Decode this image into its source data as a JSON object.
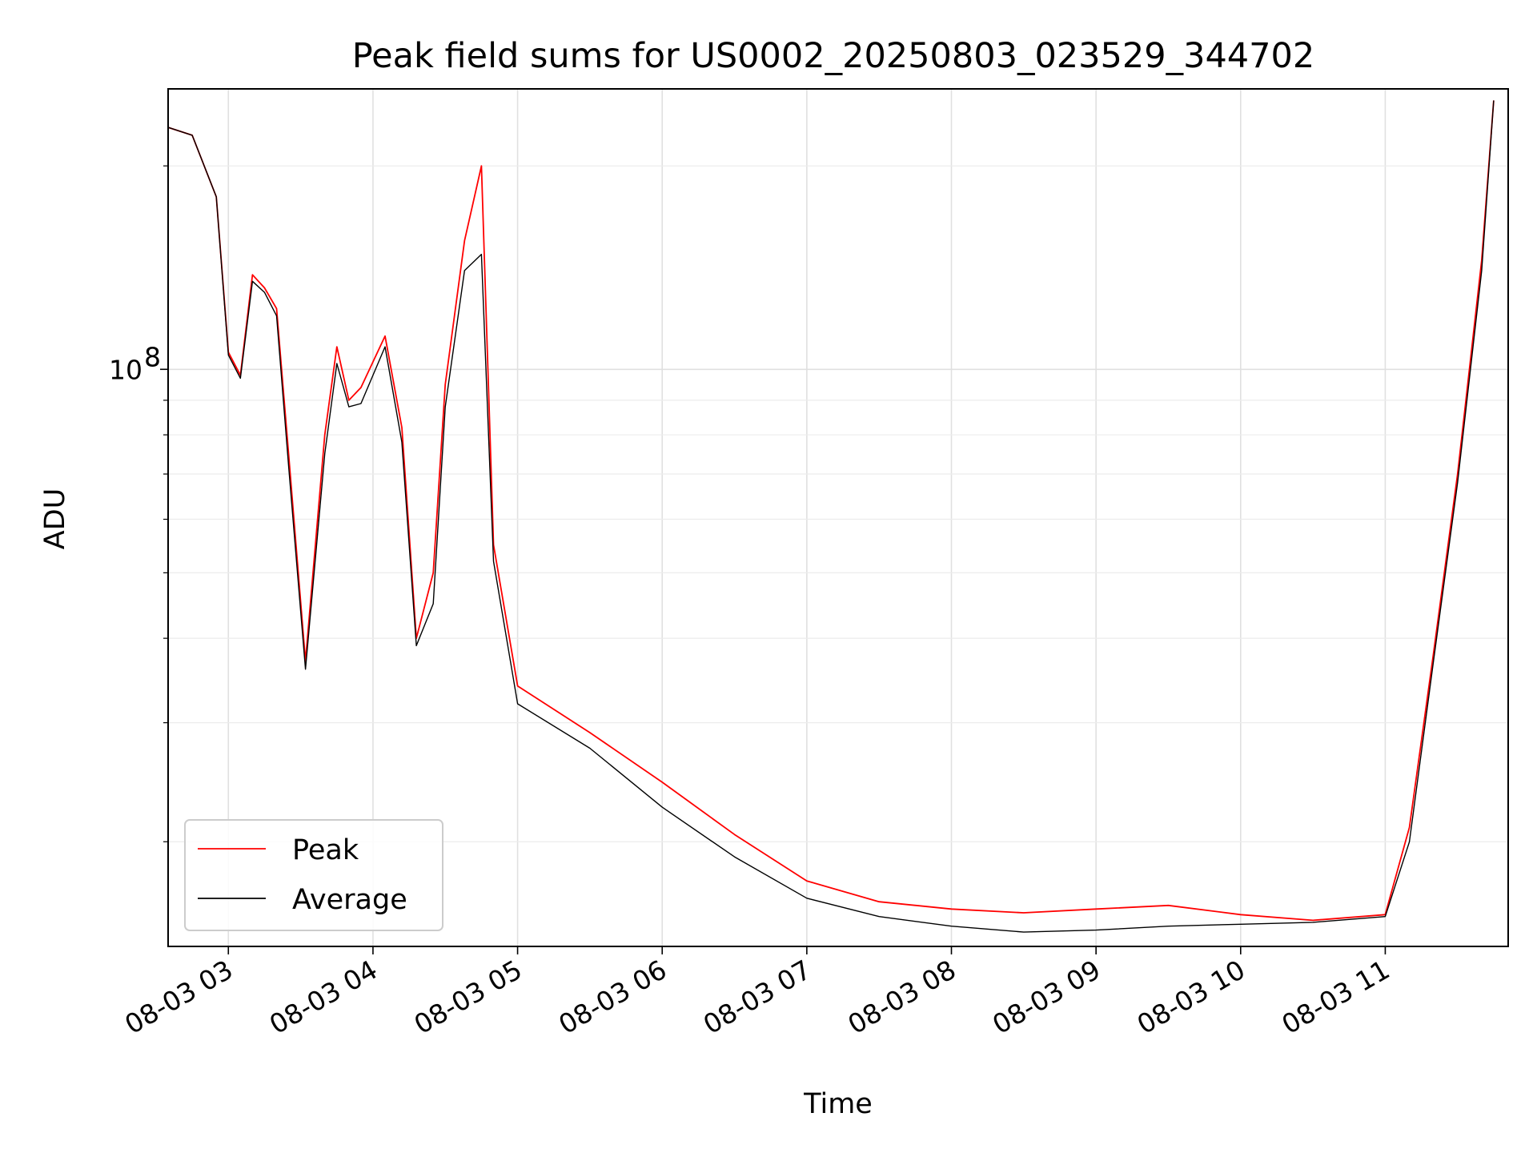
{
  "chart_data": {
    "type": "line",
    "title": "Peak field sums for US0002_20250803_023529_344702",
    "xlabel": "Time",
    "ylabel": "ADU",
    "y_scale": "log",
    "ylim": [
      14000000,
      260000000
    ],
    "xlim": [
      "2025-08-03 02:35",
      "2025-08-03 11:51"
    ],
    "x_tick_labels": [
      "08-03 03",
      "08-03 04",
      "08-03 05",
      "08-03 06",
      "08-03 07",
      "08-03 08",
      "08-03 09",
      "08-03 10",
      "08-03 11"
    ],
    "y_tick_labels": [
      {
        "base": "10",
        "exp": "8"
      }
    ],
    "grid": true,
    "legend_position": "lower-left",
    "colors": {
      "peak": "#ff0000",
      "average": "#000000"
    },
    "series": [
      {
        "name": "Peak",
        "x": [
          "2025-08-03 02:35",
          "2025-08-03 02:45",
          "2025-08-03 02:55",
          "2025-08-03 03:00",
          "2025-08-03 03:05",
          "2025-08-03 03:10",
          "2025-08-03 03:15",
          "2025-08-03 03:20",
          "2025-08-03 03:25",
          "2025-08-03 03:32",
          "2025-08-03 03:40",
          "2025-08-03 03:45",
          "2025-08-03 03:50",
          "2025-08-03 03:55",
          "2025-08-03 04:05",
          "2025-08-03 04:12",
          "2025-08-03 04:18",
          "2025-08-03 04:25",
          "2025-08-03 04:30",
          "2025-08-03 04:38",
          "2025-08-03 04:45",
          "2025-08-03 04:50",
          "2025-08-03 05:00",
          "2025-08-03 05:30",
          "2025-08-03 06:00",
          "2025-08-03 06:30",
          "2025-08-03 07:00",
          "2025-08-03 07:30",
          "2025-08-03 08:00",
          "2025-08-03 08:30",
          "2025-08-03 09:00",
          "2025-08-03 09:30",
          "2025-08-03 10:00",
          "2025-08-03 10:30",
          "2025-08-03 11:00",
          "2025-08-03 11:10",
          "2025-08-03 11:20",
          "2025-08-03 11:30",
          "2025-08-03 11:40",
          "2025-08-03 11:45"
        ],
        "values": [
          228000000,
          222000000,
          180000000,
          106000000,
          98000000,
          138000000,
          132000000,
          123000000,
          75000000,
          37000000,
          80000000,
          108000000,
          90000000,
          94000000,
          112000000,
          82000000,
          40000000,
          50000000,
          95000000,
          155000000,
          200000000,
          55000000,
          34000000,
          29000000,
          24500000,
          20500000,
          17500000,
          16300000,
          15900000,
          15700000,
          15900000,
          16100000,
          15600000,
          15300000,
          15600000,
          21000000,
          38000000,
          70000000,
          145000000,
          250000000
        ]
      },
      {
        "name": "Average",
        "x": [
          "2025-08-03 02:35",
          "2025-08-03 02:45",
          "2025-08-03 02:55",
          "2025-08-03 03:00",
          "2025-08-03 03:05",
          "2025-08-03 03:10",
          "2025-08-03 03:15",
          "2025-08-03 03:20",
          "2025-08-03 03:25",
          "2025-08-03 03:32",
          "2025-08-03 03:40",
          "2025-08-03 03:45",
          "2025-08-03 03:50",
          "2025-08-03 03:55",
          "2025-08-03 04:05",
          "2025-08-03 04:12",
          "2025-08-03 04:18",
          "2025-08-03 04:25",
          "2025-08-03 04:30",
          "2025-08-03 04:38",
          "2025-08-03 04:45",
          "2025-08-03 04:50",
          "2025-08-03 05:00",
          "2025-08-03 05:30",
          "2025-08-03 06:00",
          "2025-08-03 06:30",
          "2025-08-03 07:00",
          "2025-08-03 07:30",
          "2025-08-03 08:00",
          "2025-08-03 08:30",
          "2025-08-03 09:00",
          "2025-08-03 09:30",
          "2025-08-03 10:00",
          "2025-08-03 10:30",
          "2025-08-03 11:00",
          "2025-08-03 11:10",
          "2025-08-03 11:20",
          "2025-08-03 11:30",
          "2025-08-03 11:40",
          "2025-08-03 11:45"
        ],
        "values": [
          228000000,
          222000000,
          180000000,
          105000000,
          97000000,
          135000000,
          130000000,
          120000000,
          72000000,
          36000000,
          75000000,
          102000000,
          88000000,
          89000000,
          108000000,
          78000000,
          39000000,
          45000000,
          88000000,
          140000000,
          148000000,
          52000000,
          32000000,
          27500000,
          22500000,
          19000000,
          16500000,
          15500000,
          15000000,
          14700000,
          14800000,
          15000000,
          15100000,
          15200000,
          15500000,
          20000000,
          37000000,
          68000000,
          140000000,
          250000000
        ]
      }
    ]
  }
}
